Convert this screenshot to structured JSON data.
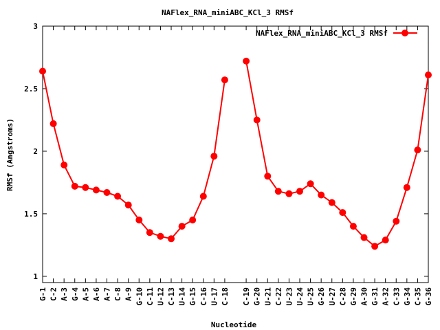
{
  "chart_data": {
    "type": "line",
    "title": "NAFlex_RNA_miniABC_KCl_3 RMSf",
    "xlabel": "Nucleotide",
    "ylabel": "RMSf (Angstroms)",
    "ylim": [
      0.95,
      3.0
    ],
    "yticks": [
      {
        "value": 1.0,
        "label": "1"
      },
      {
        "value": 1.5,
        "label": "1.5"
      },
      {
        "value": 2.0,
        "label": "2"
      },
      {
        "value": 2.5,
        "label": "2.5"
      },
      {
        "value": 3.0,
        "label": "3"
      }
    ],
    "grid": false,
    "legend_position": "top-right",
    "categories": [
      "G-1",
      "C-2",
      "A-3",
      "G-4",
      "A-5",
      "A-6",
      "A-7",
      "C-8",
      "A-9",
      "G-10",
      "C-11",
      "U-12",
      "C-13",
      "U-14",
      "G-15",
      "C-16",
      "U-17",
      "C-18",
      "C-19",
      "G-20",
      "U-21",
      "C-22",
      "U-23",
      "U-24",
      "U-25",
      "G-26",
      "U-27",
      "C-28",
      "G-29",
      "A-30",
      "G-31",
      "A-32",
      "C-33",
      "G-34",
      "C-35",
      "G-36"
    ],
    "x_positions": [
      1,
      2,
      3,
      4,
      5,
      6,
      7,
      8,
      9,
      10,
      11,
      12,
      13,
      14,
      15,
      16,
      17,
      18,
      20,
      21,
      22,
      23,
      24,
      25,
      26,
      27,
      28,
      29,
      30,
      31,
      32,
      33,
      34,
      35,
      36,
      37
    ],
    "xlim": [
      1,
      37
    ],
    "series": [
      {
        "name": "NAFlex_RNA_miniABC_KCl_3 RMSf",
        "color": "#ff0000",
        "segments": [
          [
            2.64,
            2.22,
            1.89,
            1.72,
            1.71,
            1.69,
            1.67,
            1.64,
            1.57,
            1.45,
            1.35,
            1.32,
            1.3,
            1.4,
            1.45,
            1.64,
            1.96,
            2.57
          ],
          [
            2.72,
            2.25,
            1.8,
            1.68,
            1.66,
            1.68,
            1.74,
            1.65,
            1.59,
            1.51,
            1.4,
            1.31,
            1.24,
            1.29,
            1.44,
            1.71,
            2.01,
            2.61
          ]
        ]
      }
    ]
  }
}
